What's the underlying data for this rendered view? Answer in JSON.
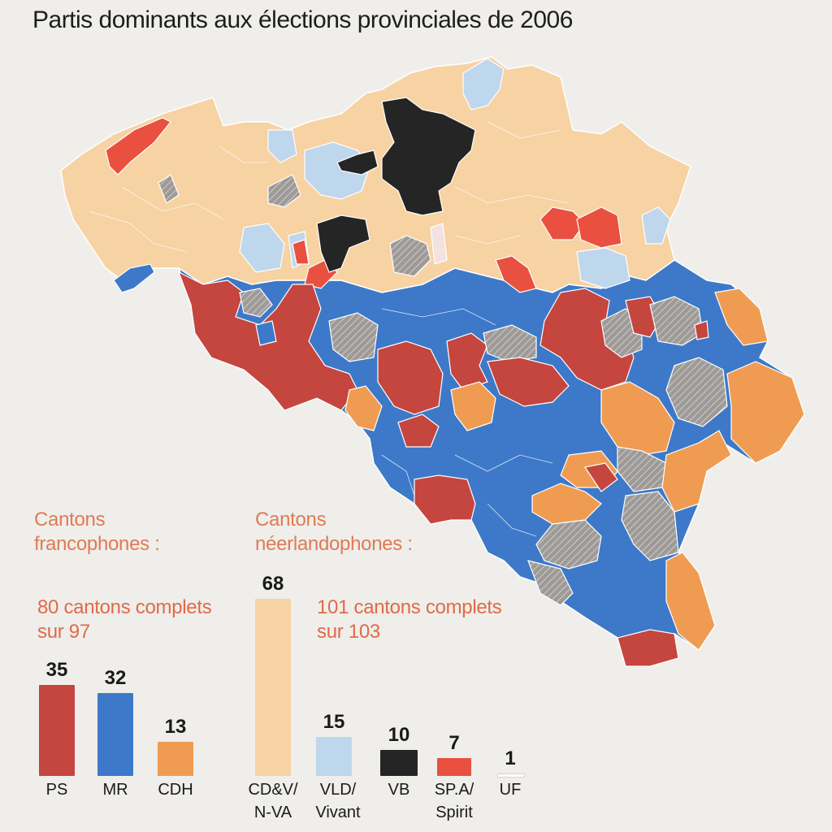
{
  "title": "Partis dominants aux élections provinciales de 2006",
  "colors": {
    "PS": "#c5453f",
    "MR": "#3d79c8",
    "CDH": "#ef9c52",
    "CD&V/N-VA": "#f7d2a3",
    "VLD/Vivant": "#bfd7ec",
    "VB": "#252525",
    "SP.A/Spirit": "#e9503f",
    "UF": "#ffffff"
  },
  "francophone": {
    "heading_line1": "Cantons",
    "heading_line2": "francophones :",
    "summary_line1": "80 cantons complets",
    "summary_line2": "sur 97"
  },
  "neerlandophone": {
    "heading_line1": "Cantons",
    "heading_line2": "néerlandophones :",
    "summary_line1": "101 cantons complets",
    "summary_line2": "sur 103"
  },
  "chart_data": [
    {
      "type": "bar",
      "title": "Cantons francophones :",
      "categories": [
        "PS",
        "MR",
        "CDH"
      ],
      "values": [
        35,
        32,
        13
      ]
    },
    {
      "type": "bar",
      "title": "Cantons néerlandophones :",
      "categories": [
        "CD&V/ N-VA",
        "VLD/ Vivant",
        "VB",
        "SP.A/ Spirit",
        "UF"
      ],
      "values": [
        68,
        15,
        10,
        7,
        1
      ]
    }
  ],
  "labels": {
    "ps": "PS",
    "mr": "MR",
    "cdh": "CDH",
    "cdv_1": "CD&V/",
    "cdv_2": "N-VA",
    "vld_1": "VLD/",
    "vld_2": "Vivant",
    "vb": "VB",
    "spa_1": "SP.A/",
    "spa_2": "Spirit",
    "uf": "UF"
  },
  "values": {
    "ps": "35",
    "mr": "32",
    "cdh": "13",
    "cdv": "68",
    "vld": "15",
    "vb": "10",
    "spa": "7",
    "uf": "1"
  }
}
